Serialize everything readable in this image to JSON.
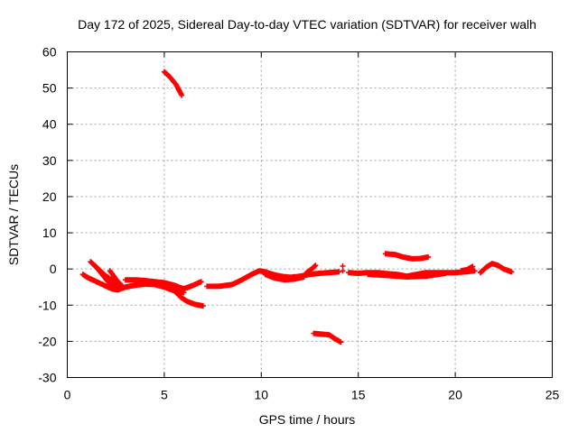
{
  "chart_data": {
    "type": "scatter",
    "title": "Day 172 of 2025, Sidereal Day-to-day VTEC variation (SDTVAR) for receiver walh",
    "xlabel": "GPS time / hours",
    "ylabel": "SDTVAR / TECUs",
    "xlim": [
      0,
      25
    ],
    "ylim": [
      -30,
      60
    ],
    "xticks": [
      0,
      5,
      10,
      15,
      20,
      25
    ],
    "yticks": [
      -30,
      -20,
      -10,
      0,
      10,
      20,
      30,
      40,
      50,
      60
    ],
    "grid": true,
    "legend": "none",
    "marker": "plus",
    "color": "#ff0000",
    "series": [
      {
        "segments": [
          [
            [
              0.8,
              -1.5
            ],
            [
              1.1,
              -2.5
            ],
            [
              1.5,
              -3.5
            ],
            [
              1.9,
              -4.5
            ],
            [
              2.3,
              -5.5
            ],
            [
              2.6,
              -5.8
            ],
            [
              3.0,
              -5.0
            ],
            [
              3.5,
              -4.5
            ],
            [
              4.0,
              -4.2
            ],
            [
              4.5,
              -4.3
            ],
            [
              5.0,
              -5.0
            ],
            [
              5.5,
              -6.0
            ],
            [
              6.0,
              -6.5
            ]
          ],
          [
            [
              1.2,
              2.0
            ],
            [
              1.5,
              0.5
            ],
            [
              1.8,
              -1.5
            ],
            [
              2.1,
              -3.5
            ],
            [
              2.4,
              -4.8
            ],
            [
              2.8,
              -5.2
            ]
          ],
          [
            [
              1.4,
              1.0
            ],
            [
              1.7,
              -0.5
            ],
            [
              2.0,
              -2.0
            ],
            [
              2.3,
              -3.0
            ],
            [
              2.6,
              -4.0
            ]
          ],
          [
            [
              2.2,
              -0.5
            ],
            [
              2.4,
              -2.0
            ],
            [
              2.6,
              -3.5
            ],
            [
              2.8,
              -4.5
            ]
          ],
          [
            [
              3.0,
              -3.0
            ],
            [
              3.5,
              -3.0
            ],
            [
              4.0,
              -3.2
            ],
            [
              4.5,
              -3.5
            ],
            [
              5.0,
              -3.8
            ],
            [
              5.5,
              -4.5
            ],
            [
              6.0,
              -5.5
            ],
            [
              6.5,
              -4.5
            ],
            [
              6.9,
              -3.5
            ]
          ],
          [
            [
              5.6,
              -6.5
            ],
            [
              5.9,
              -8.0
            ],
            [
              6.2,
              -9.0
            ],
            [
              6.6,
              -9.8
            ],
            [
              7.0,
              -10.2
            ]
          ],
          [
            [
              5.0,
              54.5
            ],
            [
              5.3,
              53.0
            ],
            [
              5.6,
              51.0
            ],
            [
              5.9,
              48.0
            ]
          ],
          [
            [
              7.2,
              -4.8
            ],
            [
              7.8,
              -4.8
            ],
            [
              8.5,
              -4.3
            ],
            [
              9.0,
              -3.0
            ],
            [
              9.5,
              -1.5
            ],
            [
              9.9,
              -0.5
            ],
            [
              10.2,
              -0.8
            ],
            [
              10.6,
              -1.5
            ],
            [
              11.0,
              -2.0
            ],
            [
              11.5,
              -2.3
            ],
            [
              12.0,
              -2.0
            ],
            [
              12.5,
              -1.5
            ],
            [
              13.0,
              -1.2
            ],
            [
              13.5,
              -1.0
            ],
            [
              14.0,
              -0.8
            ]
          ],
          [
            [
              10.2,
              -1.5
            ],
            [
              10.7,
              -2.5
            ],
            [
              11.2,
              -3.0
            ],
            [
              11.7,
              -2.8
            ],
            [
              12.2,
              -2.2
            ]
          ],
          [
            [
              12.3,
              -1.2
            ],
            [
              12.6,
              0.0
            ],
            [
              12.8,
              1.0
            ]
          ],
          [
            [
              14.2,
              0.8
            ],
            [
              14.2,
              -0.5
            ]
          ],
          [
            [
              12.7,
              -17.8
            ],
            [
              13.1,
              -18.0
            ],
            [
              13.5,
              -18.2
            ],
            [
              13.8,
              -19.3
            ],
            [
              14.1,
              -20.2
            ]
          ],
          [
            [
              14.5,
              -1.0
            ],
            [
              15.0,
              -1.2
            ],
            [
              15.5,
              -1.0
            ],
            [
              16.0,
              -1.0
            ],
            [
              16.5,
              -1.3
            ],
            [
              17.0,
              -1.5
            ],
            [
              17.5,
              -2.0
            ],
            [
              18.0,
              -1.5
            ],
            [
              18.5,
              -1.0
            ],
            [
              19.0,
              -1.0
            ],
            [
              19.5,
              -1.0
            ],
            [
              20.0,
              -1.0
            ],
            [
              20.5,
              -0.8
            ],
            [
              21.0,
              -0.5
            ]
          ],
          [
            [
              15.5,
              -1.5
            ],
            [
              16.5,
              -1.8
            ],
            [
              17.5,
              -2.2
            ],
            [
              18.5,
              -2.0
            ],
            [
              19.5,
              -1.2
            ]
          ],
          [
            [
              16.4,
              4.2
            ],
            [
              16.9,
              4.0
            ],
            [
              17.3,
              3.3
            ],
            [
              17.8,
              2.8
            ],
            [
              18.2,
              2.9
            ],
            [
              18.6,
              3.3
            ]
          ],
          [
            [
              20.3,
              -0.5
            ],
            [
              20.6,
              -0.2
            ],
            [
              20.9,
              0.7
            ]
          ],
          [
            [
              21.3,
              -1.0
            ],
            [
              21.6,
              0.5
            ],
            [
              21.9,
              1.5
            ],
            [
              22.2,
              1.0
            ],
            [
              22.5,
              0.0
            ],
            [
              22.9,
              -0.8
            ]
          ]
        ]
      }
    ]
  }
}
